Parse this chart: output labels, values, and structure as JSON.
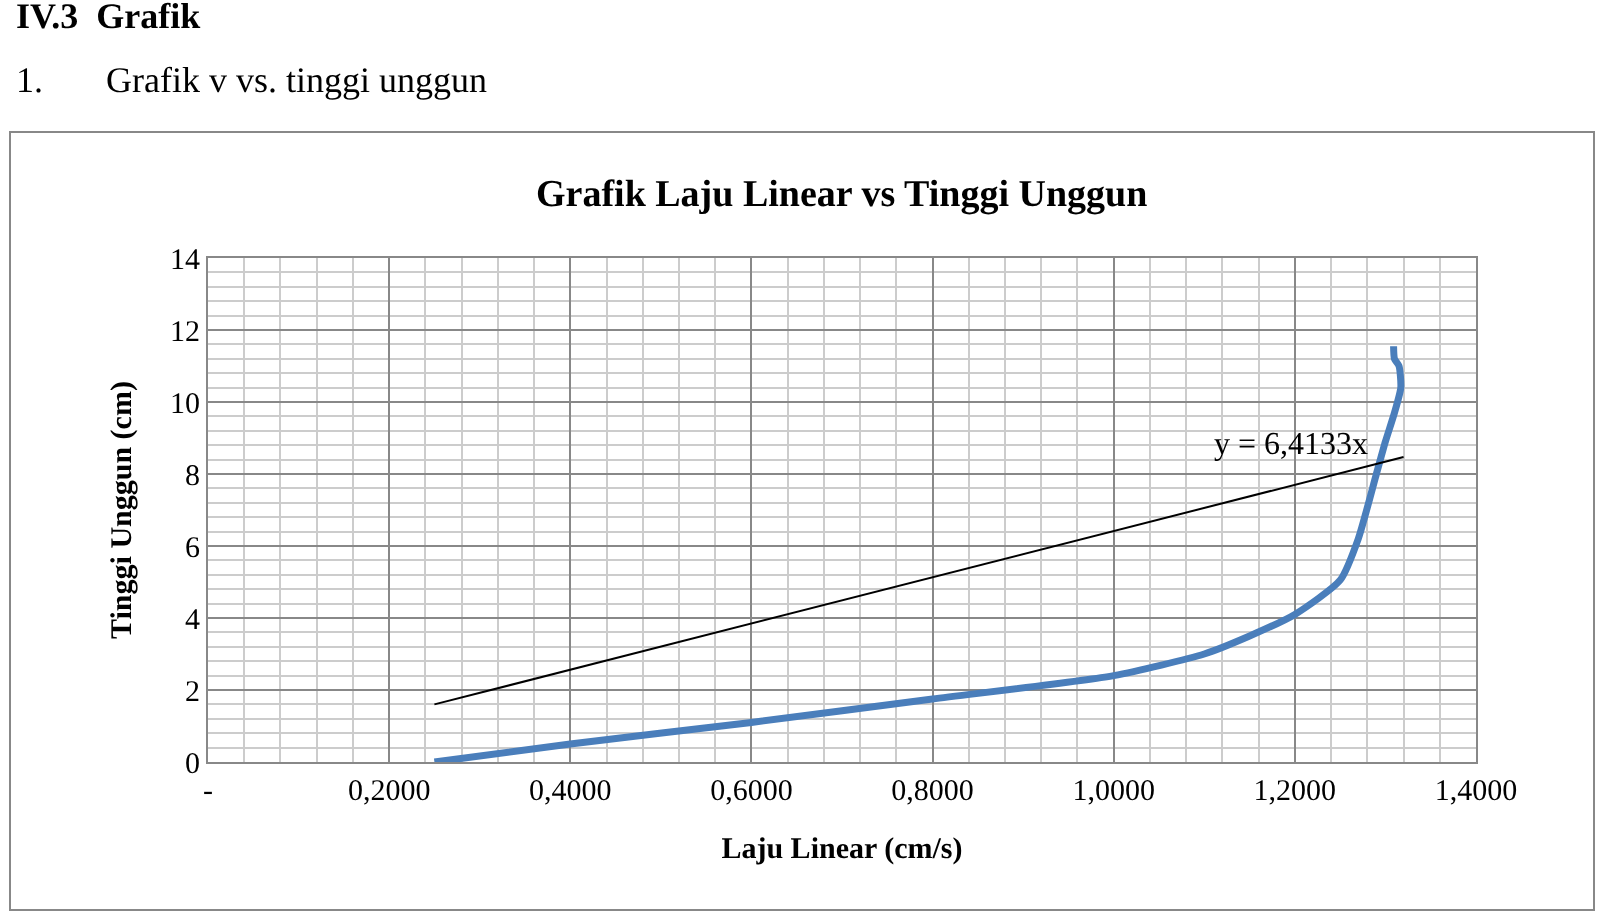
{
  "chart_data": {
    "type": "line",
    "title": "Grafik Laju Linear vs Tinggi Unggun",
    "xlabel": "Laju Linear (cm/s)",
    "ylabel": "Tinggi Unggun (cm)",
    "annotations": [
      "IV.3  Grafik",
      "1.       Grafik v vs. tinggi unggun",
      "y = 6,4133x"
    ],
    "series": [
      {
        "color": "#4a7ebb",
        "x": [
          0.25,
          0.4,
          0.6,
          0.8,
          1.0,
          1.1,
          1.15,
          1.2,
          1.25,
          1.27,
          1.29,
          1.3,
          1.31,
          1.317,
          1.315,
          1.31,
          1.309
        ],
        "values": [
          0,
          0.5,
          1.1,
          1.75,
          2.4,
          3.0,
          3.5,
          4.1,
          5.05,
          6.2,
          8.0,
          8.9,
          9.7,
          10.4,
          11.0,
          11.2,
          11.55
        ]
      },
      {
        "type": "line",
        "color": "#000000",
        "x": [
          0.25,
          1.32
        ],
        "values": [
          1.6,
          8.47
        ]
      }
    ],
    "xlim": [
      0,
      1.4
    ],
    "xticks": [
      {
        "value": 0,
        "label": "-"
      },
      {
        "value": 0.2,
        "label": "0,2000"
      },
      {
        "value": 0.4,
        "label": "0,4000"
      },
      {
        "value": 0.6,
        "label": "0,6000"
      },
      {
        "value": 0.8,
        "label": "0,8000"
      },
      {
        "value": 1.0,
        "label": "1,0000"
      },
      {
        "value": 1.2,
        "label": "1,2000"
      },
      {
        "value": 1.4,
        "label": "1,4000"
      }
    ],
    "ylim": [
      0,
      14
    ],
    "yticks": [
      0,
      2,
      4,
      6,
      8,
      10,
      12,
      14
    ],
    "grid": true,
    "marker": "none"
  }
}
